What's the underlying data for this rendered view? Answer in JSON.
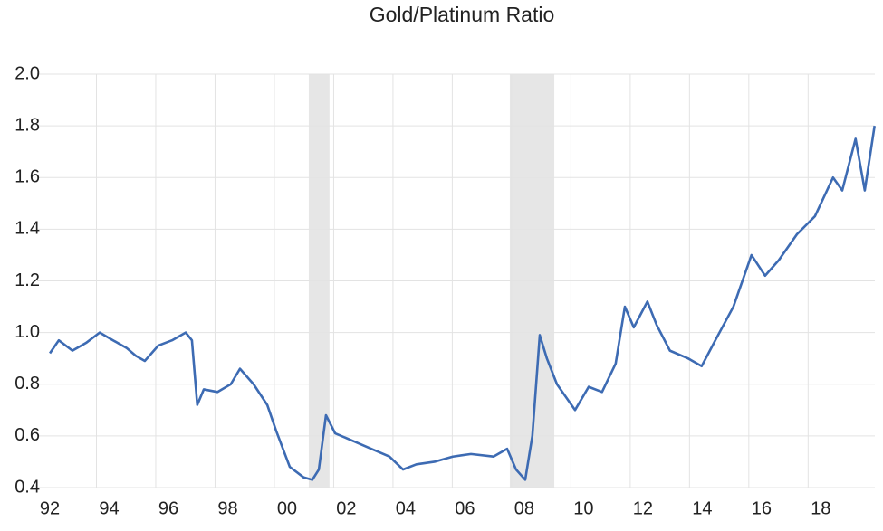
{
  "chart_data": {
    "type": "line",
    "title": "Gold/Platinum Ratio",
    "x": [
      1992.43,
      1992.73,
      1993.19,
      1993.65,
      1994.11,
      1994.56,
      1995.02,
      1995.33,
      1995.63,
      1996.09,
      1996.55,
      1997.01,
      1997.22,
      1997.4,
      1997.62,
      1998.08,
      1998.53,
      1998.84,
      1999.3,
      1999.76,
      2000.06,
      2000.52,
      2000.98,
      2001.28,
      2001.5,
      2001.74,
      2002.05,
      2002.66,
      2003.27,
      2003.88,
      2004.34,
      2004.79,
      2005.4,
      2006.02,
      2006.63,
      2007.39,
      2007.85,
      2008.15,
      2008.46,
      2008.7,
      2008.95,
      2009.19,
      2009.53,
      2010.14,
      2010.6,
      2011.05,
      2011.51,
      2011.82,
      2012.12,
      2012.58,
      2012.89,
      2013.34,
      2013.95,
      2014.41,
      2014.87,
      2015.48,
      2016.09,
      2016.55,
      2017.01,
      2017.62,
      2018.23,
      2018.84,
      2019.15,
      2019.6,
      2019.91,
      2020.24
    ],
    "series": [
      {
        "name": "Gold/Platinum Ratio",
        "color": "#3d6bb3",
        "values": [
          0.92,
          0.97,
          0.93,
          0.96,
          1.0,
          0.97,
          0.94,
          0.91,
          0.89,
          0.95,
          0.97,
          1.0,
          0.97,
          0.72,
          0.78,
          0.77,
          0.8,
          0.86,
          0.8,
          0.72,
          0.62,
          0.48,
          0.44,
          0.43,
          0.47,
          0.68,
          0.61,
          0.58,
          0.55,
          0.52,
          0.47,
          0.49,
          0.5,
          0.52,
          0.53,
          0.52,
          0.55,
          0.47,
          0.43,
          0.6,
          0.99,
          0.9,
          0.8,
          0.7,
          0.79,
          0.77,
          0.88,
          1.1,
          1.02,
          1.12,
          1.03,
          0.93,
          0.9,
          0.87,
          0.97,
          1.1,
          1.3,
          1.22,
          1.28,
          1.38,
          1.45,
          1.6,
          1.55,
          1.75,
          1.55,
          1.8
        ]
      }
    ],
    "shaded_regions": [
      [
        2001.16,
        2001.86
      ],
      [
        2007.94,
        2009.44
      ]
    ],
    "shaded_color": "#e6e6e6",
    "xlim": [
      1992,
      2020.25
    ],
    "xticks": [
      {
        "value": 1992,
        "label": "92"
      },
      {
        "value": 1994,
        "label": "94"
      },
      {
        "value": 1996,
        "label": "96"
      },
      {
        "value": 1998,
        "label": "98"
      },
      {
        "value": 2000,
        "label": "00"
      },
      {
        "value": 2002,
        "label": "02"
      },
      {
        "value": 2004,
        "label": "04"
      },
      {
        "value": 2006,
        "label": "06"
      },
      {
        "value": 2008,
        "label": "08"
      },
      {
        "value": 2010,
        "label": "10"
      },
      {
        "value": 2012,
        "label": "12"
      },
      {
        "value": 2014,
        "label": "14"
      },
      {
        "value": 2016,
        "label": "16"
      },
      {
        "value": 2018,
        "label": "18"
      }
    ],
    "ylim": [
      0.4,
      2.0
    ],
    "yticks": [
      0.4,
      0.6,
      0.8,
      {
        "value": 1,
        "label": "1.0"
      },
      1.2,
      1.4,
      1.6,
      1.8,
      {
        "value": 2,
        "label": "2.0"
      }
    ],
    "grid": true
  }
}
